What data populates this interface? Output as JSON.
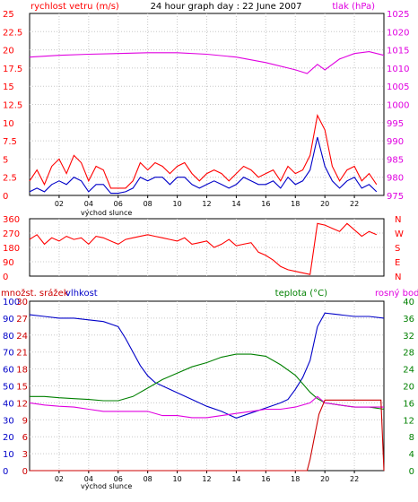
{
  "chart_data": [
    {
      "type": "line",
      "title": "24 hour graph day : 22 June 2007",
      "left_label": "rychlost vetru (m/s)",
      "right_label": "tlak (hPa)",
      "x_ticks": [
        "02",
        "04",
        "06",
        "08",
        "10",
        "12",
        "14",
        "16",
        "18",
        "20",
        "22"
      ],
      "x_note": "východ slunce",
      "xlim": [
        0,
        24
      ],
      "left_ylim": [
        0,
        25
      ],
      "left_ticks": [
        "0",
        "2.5",
        "5",
        "7.5",
        "10",
        "12.5",
        "15",
        "17.5",
        "20",
        "22.5",
        "25"
      ],
      "right_ylim": [
        975,
        1025
      ],
      "right_ticks": [
        "975",
        "980",
        "985",
        "990",
        "995",
        "1000",
        "1005",
        "1010",
        "1015",
        "1020",
        "1025"
      ],
      "grid": true,
      "colors": {
        "gust": "#ff0000",
        "wind": "#0000c8",
        "pressure": "#e000e0",
        "axes": "#000000"
      },
      "series": [
        {
          "name": "gust",
          "axis": "left",
          "x": [
            0,
            0.5,
            1,
            1.5,
            2,
            2.5,
            3,
            3.5,
            4,
            4.5,
            5,
            5.5,
            6,
            6.5,
            7,
            7.5,
            8,
            8.5,
            9,
            9.5,
            10,
            10.5,
            11,
            11.5,
            12,
            12.5,
            13,
            13.5,
            14,
            14.5,
            15,
            15.5,
            16,
            16.5,
            17,
            17.5,
            18,
            18.5,
            19,
            19.5,
            20,
            20.5,
            21,
            21.5,
            22,
            22.5,
            23,
            23.5
          ],
          "values": [
            2,
            3.5,
            1.5,
            4,
            5,
            3,
            5.5,
            4.5,
            2,
            4,
            3.5,
            1,
            1,
            1,
            2,
            4.5,
            3.5,
            4.5,
            4,
            3,
            4,
            4.5,
            3,
            2,
            3,
            3.5,
            3,
            2,
            3,
            4,
            3.5,
            2.5,
            3,
            3.5,
            2,
            4,
            3,
            3.5,
            5.5,
            11,
            9,
            4,
            2,
            3.5,
            4,
            2,
            3,
            1.5
          ]
        },
        {
          "name": "wind",
          "axis": "left",
          "x": [
            0,
            0.5,
            1,
            1.5,
            2,
            2.5,
            3,
            3.5,
            4,
            4.5,
            5,
            5.5,
            6,
            6.5,
            7,
            7.5,
            8,
            8.5,
            9,
            9.5,
            10,
            10.5,
            11,
            11.5,
            12,
            12.5,
            13,
            13.5,
            14,
            14.5,
            15,
            15.5,
            16,
            16.5,
            17,
            17.5,
            18,
            18.5,
            19,
            19.5,
            20,
            20.5,
            21,
            21.5,
            22,
            22.5,
            23,
            23.5
          ],
          "values": [
            0.5,
            1,
            0.5,
            1.5,
            2,
            1.5,
            2.5,
            2,
            0.5,
            1.5,
            1.5,
            0.3,
            0.3,
            0.5,
            1,
            2.5,
            2,
            2.5,
            2.5,
            1.5,
            2.5,
            2.5,
            1.5,
            1,
            1.5,
            2,
            1.5,
            1,
            1.5,
            2.5,
            2,
            1.5,
            1.5,
            2,
            1,
            2.5,
            1.5,
            2,
            3.5,
            8,
            4,
            2,
            1,
            2,
            2.5,
            1,
            1.5,
            0.5
          ]
        },
        {
          "name": "pressure",
          "axis": "right",
          "x": [
            0,
            2,
            4,
            6,
            8,
            10,
            12,
            14,
            16,
            18,
            18.8,
            19.5,
            20,
            21,
            22,
            23,
            24
          ],
          "values": [
            1013,
            1013.5,
            1013.8,
            1014,
            1014.2,
            1014.2,
            1013.8,
            1013,
            1011.5,
            1009.5,
            1008.5,
            1011,
            1009.5,
            1012.5,
            1014,
            1014.5,
            1013.5
          ]
        }
      ]
    },
    {
      "type": "scatter",
      "left_ticks": [
        "360",
        "270",
        "180",
        "90",
        "0"
      ],
      "ylim": [
        0,
        360
      ],
      "right_ticks": [
        "N",
        "W",
        "S",
        "E",
        "N"
      ],
      "colors": {
        "direction": "#ff0000"
      },
      "series": [
        {
          "name": "direction",
          "x": [
            0,
            0.5,
            1,
            1.5,
            2,
            2.5,
            3,
            3.5,
            4,
            4.5,
            5,
            5.5,
            6,
            6.5,
            7,
            7.5,
            8,
            8.5,
            9,
            9.5,
            10,
            10.5,
            11,
            11.5,
            12,
            12.5,
            13,
            13.5,
            14,
            14.5,
            15,
            15.5,
            16,
            16.5,
            17,
            17.5,
            18,
            18.5,
            19,
            19.5,
            20,
            20.5,
            21,
            21.5,
            22,
            22.5,
            23,
            23.5
          ],
          "values": [
            230,
            260,
            200,
            240,
            220,
            250,
            230,
            240,
            200,
            250,
            240,
            220,
            200,
            230,
            240,
            250,
            260,
            250,
            240,
            230,
            220,
            240,
            200,
            210,
            220,
            180,
            200,
            230,
            190,
            200,
            210,
            150,
            130,
            100,
            60,
            40,
            30,
            20,
            10,
            330,
            320,
            300,
            280,
            330,
            290,
            250,
            280,
            260
          ]
        }
      ]
    },
    {
      "type": "line",
      "left_label": "množst. srážek",
      "left_label2": "vlhkost",
      "right_label": "teplota (°C)",
      "right_label2": "rosný bod",
      "x_ticks": [
        "02",
        "04",
        "06",
        "08",
        "10",
        "12",
        "14",
        "16",
        "18",
        "20",
        "22"
      ],
      "x_note": "východ slunce",
      "xlim": [
        0,
        24
      ],
      "precip_ticks": [
        "0",
        "3",
        "6",
        "9",
        "12",
        "15",
        "18",
        "21",
        "24",
        "27",
        "30"
      ],
      "precip_ylim": [
        0,
        30
      ],
      "humidity_ticks": [
        "0",
        "10",
        "20",
        "30",
        "40",
        "50",
        "60",
        "70",
        "80",
        "90",
        "100"
      ],
      "humidity_ylim": [
        0,
        100
      ],
      "temp_ticks": [
        "0",
        "4",
        "8",
        "12",
        "16",
        "20",
        "24",
        "28",
        "32",
        "36",
        "40"
      ],
      "temp_ylim": [
        0,
        40
      ],
      "grid": true,
      "colors": {
        "humidity": "#0000c8",
        "temperature": "#008000",
        "dewpoint": "#e000e0",
        "precipitation": "#cc0000"
      },
      "series": [
        {
          "name": "humidity",
          "axis": "humidity",
          "x": [
            0,
            1,
            2,
            3,
            4,
            5,
            6,
            6.5,
            7,
            7.5,
            8,
            8.5,
            9,
            10,
            11,
            12,
            13,
            14,
            15,
            16,
            17,
            17.5,
            18,
            18.5,
            19,
            19.5,
            20,
            21,
            22,
            23,
            24
          ],
          "values": [
            92,
            91,
            90,
            90,
            89,
            88,
            85,
            78,
            70,
            62,
            56,
            52,
            50,
            46,
            42,
            38,
            35,
            31,
            34,
            37,
            40,
            42,
            48,
            55,
            65,
            85,
            93,
            92,
            91,
            91,
            90
          ]
        },
        {
          "name": "temperature",
          "axis": "temp",
          "x": [
            0,
            1,
            2,
            3,
            4,
            5,
            6,
            7,
            8,
            9,
            10,
            11,
            12,
            13,
            14,
            15,
            16,
            17,
            18,
            18.5,
            19,
            19.5,
            20,
            21,
            22,
            23,
            24
          ],
          "values": [
            17.5,
            17.5,
            17.2,
            17,
            16.8,
            16.5,
            16.5,
            17.5,
            19.5,
            21.5,
            23,
            24.5,
            25.5,
            26.8,
            27.5,
            27.5,
            27,
            25,
            22.5,
            20.5,
            18.5,
            17,
            16,
            15.5,
            15,
            15,
            14.5
          ]
        },
        {
          "name": "dewpoint",
          "axis": "temp",
          "x": [
            0,
            1,
            2,
            3,
            4,
            5,
            6,
            7,
            8,
            9,
            10,
            11,
            12,
            13,
            14,
            15,
            16,
            17,
            18,
            19,
            19.5,
            20,
            21,
            22,
            23,
            24
          ],
          "values": [
            16,
            15.5,
            15.2,
            15,
            14.5,
            14,
            14,
            14,
            14,
            13,
            13,
            12.5,
            12.5,
            13,
            13.5,
            14,
            14.5,
            14.5,
            15,
            16,
            17.5,
            16,
            15.5,
            15,
            15,
            15
          ]
        },
        {
          "name": "precipitation",
          "axis": "precip",
          "x": [
            0,
            2,
            4,
            6,
            8,
            10,
            12,
            14,
            16,
            18,
            18.8,
            19,
            19.3,
            19.6,
            20,
            21,
            22,
            23,
            23.8,
            24
          ],
          "values": [
            0,
            0,
            0,
            0,
            0,
            0,
            0,
            0,
            0,
            0,
            0,
            2,
            6,
            10,
            12.5,
            12.5,
            12.5,
            12.5,
            12.5,
            0
          ]
        }
      ]
    }
  ]
}
